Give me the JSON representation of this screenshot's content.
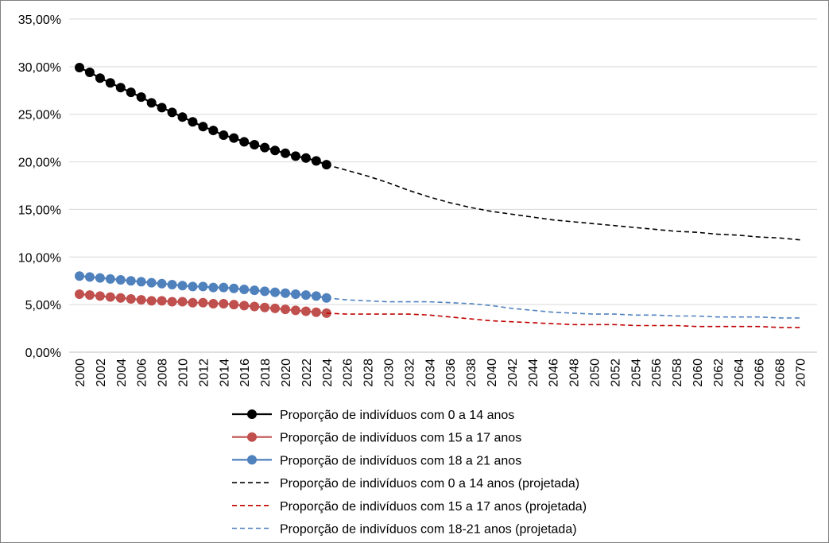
{
  "chart_data": {
    "type": "line",
    "title": "",
    "xlabel": "",
    "ylabel": "",
    "ylim": [
      0,
      0.35
    ],
    "xlim": [
      2000,
      2070
    ],
    "y_ticks": [
      "0,00%",
      "5,00%",
      "10,00%",
      "15,00%",
      "20,00%",
      "25,00%",
      "30,00%",
      "35,00%"
    ],
    "x_ticks": [
      "2000",
      "2002",
      "2004",
      "2006",
      "2008",
      "2010",
      "2012",
      "2014",
      "2016",
      "2018",
      "2020",
      "2022",
      "2024",
      "2026",
      "2028",
      "2030",
      "2032",
      "2034",
      "2036",
      "2038",
      "2040",
      "2042",
      "2044",
      "2046",
      "2048",
      "2050",
      "2052",
      "2054",
      "2056",
      "2058",
      "2060",
      "2062",
      "2064",
      "2066",
      "2068",
      "2070"
    ],
    "grid": true,
    "legend_placement": "bottom",
    "series": [
      {
        "name": "Proporção de indivíduos com 0 a 14 anos",
        "style": "solid-markers",
        "color": "#000000",
        "x": [
          2000,
          2001,
          2002,
          2003,
          2004,
          2005,
          2006,
          2007,
          2008,
          2009,
          2010,
          2011,
          2012,
          2013,
          2014,
          2015,
          2016,
          2017,
          2018,
          2019,
          2020,
          2021,
          2022,
          2023,
          2024
        ],
        "values": [
          0.299,
          0.294,
          0.288,
          0.283,
          0.278,
          0.273,
          0.268,
          0.262,
          0.257,
          0.252,
          0.247,
          0.242,
          0.237,
          0.233,
          0.228,
          0.225,
          0.221,
          0.218,
          0.215,
          0.212,
          0.209,
          0.206,
          0.204,
          0.201,
          0.197
        ]
      },
      {
        "name": "Proporção de indivíduos com 15 a 17 anos",
        "style": "solid-markers",
        "color": "#c0504d",
        "x": [
          2000,
          2001,
          2002,
          2003,
          2004,
          2005,
          2006,
          2007,
          2008,
          2009,
          2010,
          2011,
          2012,
          2013,
          2014,
          2015,
          2016,
          2017,
          2018,
          2019,
          2020,
          2021,
          2022,
          2023,
          2024
        ],
        "values": [
          0.061,
          0.06,
          0.059,
          0.058,
          0.057,
          0.056,
          0.055,
          0.054,
          0.054,
          0.053,
          0.053,
          0.052,
          0.052,
          0.051,
          0.051,
          0.05,
          0.049,
          0.048,
          0.047,
          0.046,
          0.045,
          0.044,
          0.043,
          0.042,
          0.041
        ]
      },
      {
        "name": "Proporção de indivíduos com 18 a 21 anos",
        "style": "solid-markers",
        "color": "#4f81bd",
        "x": [
          2000,
          2001,
          2002,
          2003,
          2004,
          2005,
          2006,
          2007,
          2008,
          2009,
          2010,
          2011,
          2012,
          2013,
          2014,
          2015,
          2016,
          2017,
          2018,
          2019,
          2020,
          2021,
          2022,
          2023,
          2024
        ],
        "values": [
          0.08,
          0.079,
          0.078,
          0.077,
          0.076,
          0.075,
          0.074,
          0.073,
          0.072,
          0.071,
          0.07,
          0.069,
          0.069,
          0.068,
          0.068,
          0.067,
          0.066,
          0.065,
          0.064,
          0.063,
          0.062,
          0.061,
          0.06,
          0.059,
          0.057
        ]
      },
      {
        "name": "Proporção de indivíduos com 0 a 14 anos (projetada)",
        "style": "dashed",
        "color": "#000000",
        "x": [
          2024,
          2026,
          2028,
          2030,
          2032,
          2034,
          2036,
          2038,
          2040,
          2042,
          2044,
          2046,
          2048,
          2050,
          2052,
          2054,
          2056,
          2058,
          2060,
          2062,
          2064,
          2066,
          2068,
          2070
        ],
        "values": [
          0.197,
          0.191,
          0.185,
          0.178,
          0.17,
          0.163,
          0.157,
          0.152,
          0.148,
          0.145,
          0.142,
          0.139,
          0.137,
          0.135,
          0.133,
          0.131,
          0.129,
          0.127,
          0.126,
          0.124,
          0.123,
          0.121,
          0.12,
          0.118
        ]
      },
      {
        "name": "Proporção de indivíduos com 15 a 17 anos (projetada)",
        "style": "dashed",
        "color": "#c00000",
        "x": [
          2024,
          2026,
          2028,
          2030,
          2032,
          2034,
          2036,
          2038,
          2040,
          2042,
          2044,
          2046,
          2048,
          2050,
          2052,
          2054,
          2056,
          2058,
          2060,
          2062,
          2064,
          2066,
          2068,
          2070
        ],
        "values": [
          0.041,
          0.04,
          0.04,
          0.04,
          0.04,
          0.039,
          0.037,
          0.035,
          0.033,
          0.032,
          0.031,
          0.03,
          0.029,
          0.029,
          0.029,
          0.028,
          0.028,
          0.028,
          0.027,
          0.027,
          0.027,
          0.027,
          0.026,
          0.026
        ]
      },
      {
        "name": "Proporção de indivíduos com 18-21 anos (projetada)",
        "style": "dashed",
        "color": "#4f81bd",
        "x": [
          2024,
          2026,
          2028,
          2030,
          2032,
          2034,
          2036,
          2038,
          2040,
          2042,
          2044,
          2046,
          2048,
          2050,
          2052,
          2054,
          2056,
          2058,
          2060,
          2062,
          2064,
          2066,
          2068,
          2070
        ],
        "values": [
          0.057,
          0.055,
          0.054,
          0.053,
          0.053,
          0.053,
          0.052,
          0.051,
          0.049,
          0.046,
          0.044,
          0.042,
          0.041,
          0.04,
          0.04,
          0.039,
          0.039,
          0.038,
          0.038,
          0.037,
          0.037,
          0.037,
          0.036,
          0.036
        ]
      }
    ]
  }
}
